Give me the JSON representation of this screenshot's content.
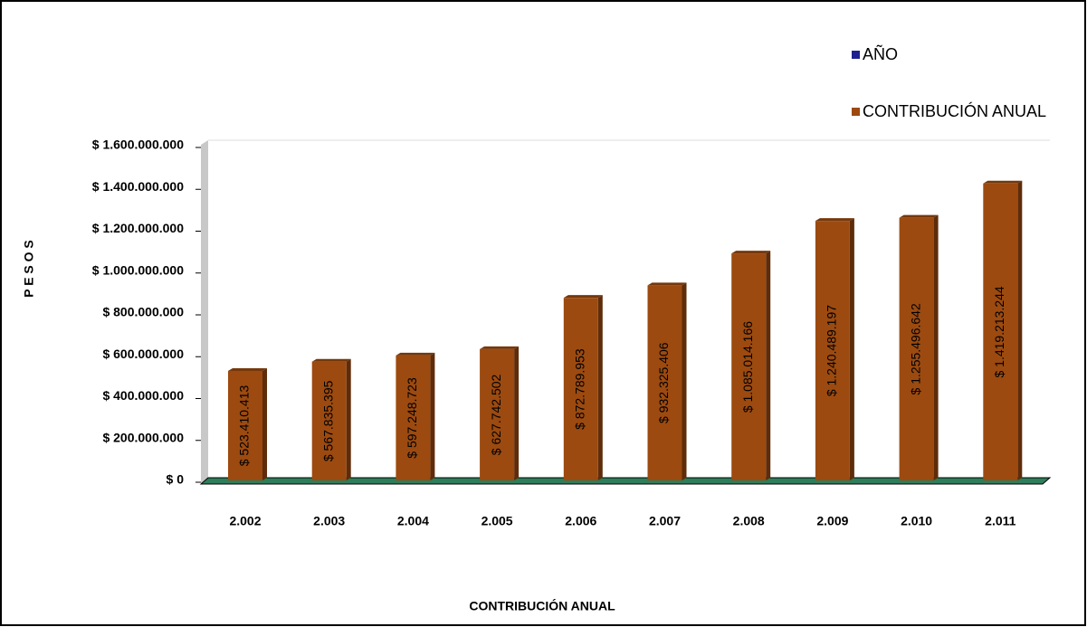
{
  "chart_data": {
    "type": "bar",
    "x_label": "CONTRIBUCIÓN ANUAL",
    "y_label": "P E S O S",
    "categories": [
      "2.002",
      "2.003",
      "2.004",
      "2.005",
      "2.006",
      "2.007",
      "2.008",
      "2.009",
      "2.010",
      "2.011"
    ],
    "series": [
      {
        "name": "AÑO",
        "color": "#1f1f8f",
        "values": [
          null,
          null,
          null,
          null,
          null,
          null,
          null,
          null,
          null,
          null
        ]
      },
      {
        "name": "CONTRIBUCIÓN ANUAL",
        "color": "#9c4a10",
        "values": [
          523410413,
          567835395,
          597248723,
          627742502,
          872789953,
          932325406,
          1085014166,
          1240489197,
          1255496642,
          1419213244
        ],
        "value_labels": [
          "$ 523.410.413",
          "$ 567.835.395",
          "$ 597.248.723",
          "$ 627.742.502",
          "$ 872.789.953",
          "$ 932.325.406",
          "$ 1.085.014.166",
          "$ 1.240.489.197",
          "$ 1.255.496.642",
          "$ 1.419.213.244"
        ]
      }
    ],
    "ylim": [
      0,
      1600000000
    ],
    "yticks": [
      {
        "value": 0,
        "label": "$ 0"
      },
      {
        "value": 200000000,
        "label": "$ 200.000.000"
      },
      {
        "value": 400000000,
        "label": "$ 400.000.000"
      },
      {
        "value": 600000000,
        "label": "$ 600.000.000"
      },
      {
        "value": 800000000,
        "label": "$ 800.000.000"
      },
      {
        "value": 1000000000,
        "label": "$ 1.000.000.000"
      },
      {
        "value": 1200000000,
        "label": "$ 1.200.000.000"
      },
      {
        "value": 1400000000,
        "label": "$ 1.400.000.000"
      },
      {
        "value": 1600000000,
        "label": "$ 1.600.000.000"
      }
    ],
    "grid": false
  }
}
